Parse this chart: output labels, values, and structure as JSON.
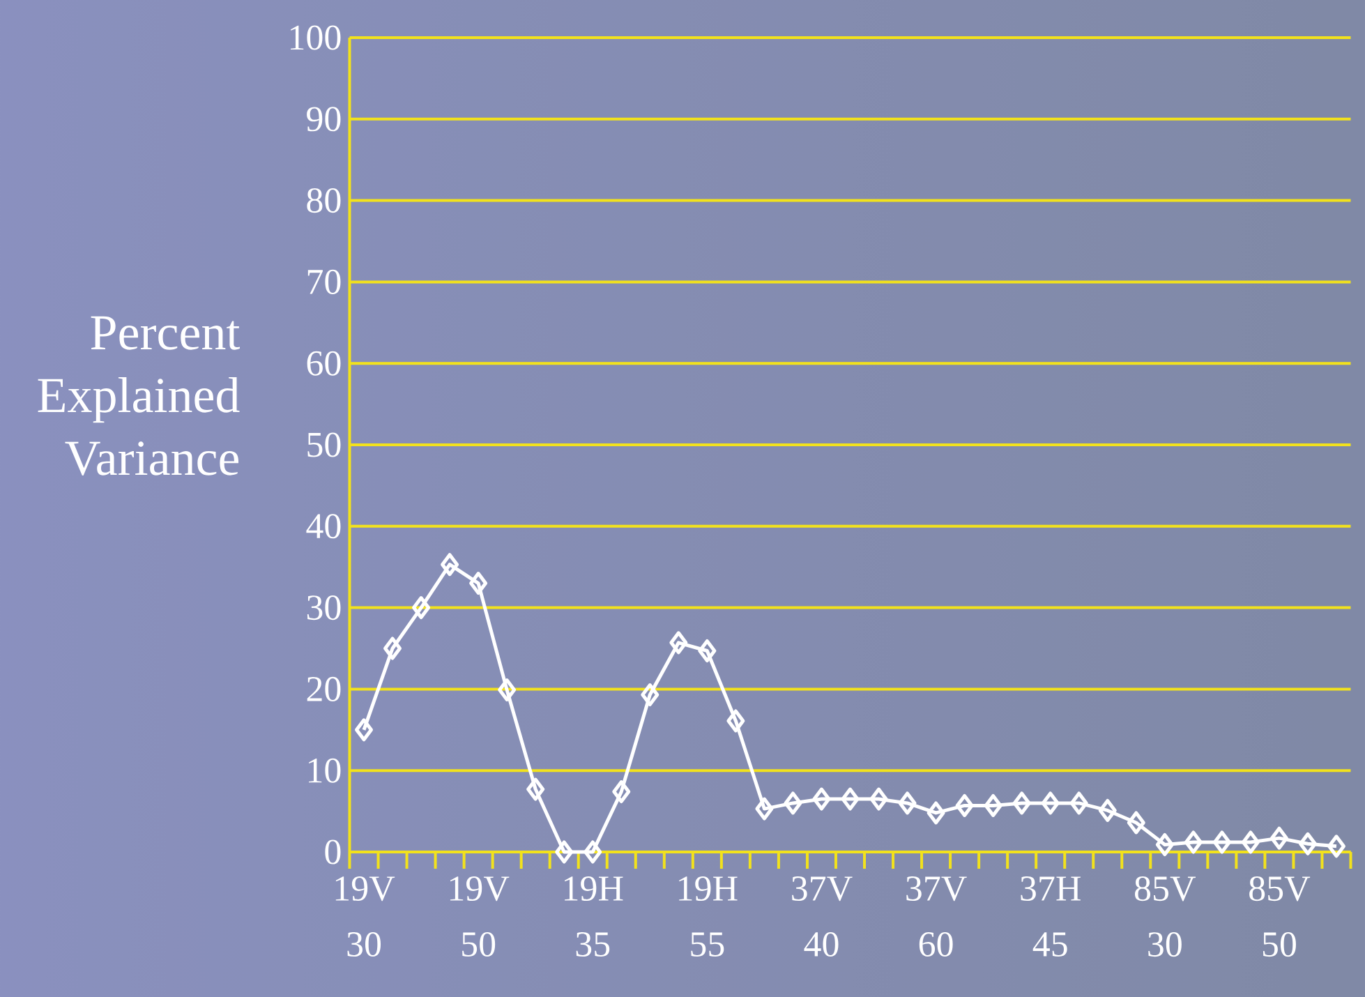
{
  "chart_data": {
    "type": "line",
    "ylabel": "Percent Explained Variance",
    "categories": [
      "19V 30",
      null,
      null,
      null,
      "19V 50",
      null,
      null,
      null,
      "19H 35",
      null,
      null,
      null,
      "19H 55",
      null,
      null,
      null,
      "37V 40",
      null,
      null,
      null,
      "37V 60",
      null,
      null,
      null,
      "37H 45",
      null,
      null,
      null,
      "85V 30",
      null,
      null,
      null,
      "85V 50",
      null,
      null
    ],
    "values": [
      15,
      25,
      30,
      35.3,
      33,
      19.9,
      7.7,
      0,
      0,
      7.4,
      19.3,
      25.7,
      24.7,
      16.1,
      5.3,
      6,
      6.5,
      6.5,
      6.5,
      6,
      4.8,
      5.7,
      5.7,
      6,
      6,
      6,
      5.1,
      3.6,
      0.9,
      1.2,
      1.2,
      1.2,
      1.7,
      1,
      0.7
    ],
    "color": "#ffffff",
    "marker": "diamond",
    "ylim": [
      0,
      100
    ],
    "yticks": [
      0,
      10,
      20,
      30,
      40,
      50,
      60,
      70,
      80,
      90,
      100
    ],
    "grid": "y"
  }
}
